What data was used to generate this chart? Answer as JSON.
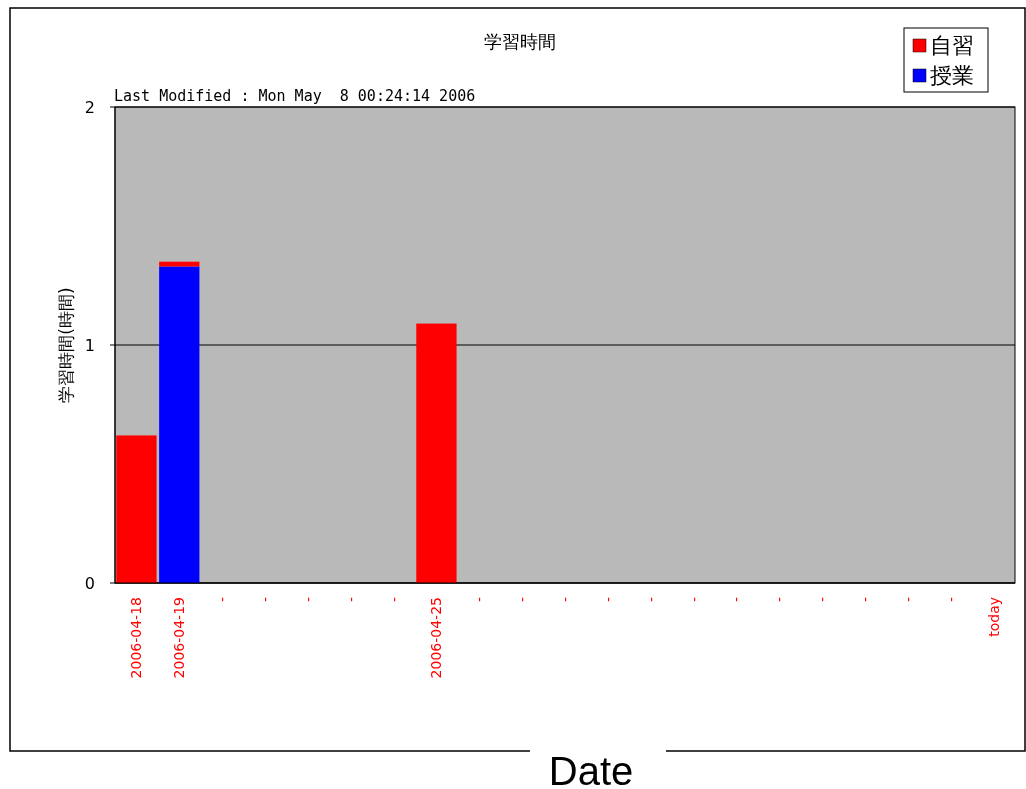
{
  "chart_data": {
    "type": "bar",
    "title": "学習時間",
    "xlabel": "Date",
    "ylabel": "学習時間(時間)",
    "annotations": [
      "Last Modified : Mon May  8 00:24:14 2006"
    ],
    "categories": [
      "2006-04-18",
      "2006-04-19",
      "-",
      "-",
      "-",
      "-",
      "-",
      "2006-04-25",
      "-",
      "-",
      "-",
      "-",
      "-",
      "-",
      "-",
      "-",
      "-",
      "-",
      "-",
      "-",
      "today"
    ],
    "stacked": true,
    "ylim": [
      0,
      2
    ],
    "yticks": [
      0,
      1,
      2
    ],
    "grid": "y",
    "legend": "top right",
    "series": [
      {
        "name": "授業",
        "color": "#0000ff",
        "values": [
          null,
          1.33,
          null,
          null,
          null,
          null,
          null,
          null,
          null,
          null,
          null,
          null,
          null,
          null,
          null,
          null,
          null,
          null,
          null,
          null,
          null
        ]
      },
      {
        "name": "自習",
        "color": "#ff0000",
        "values": [
          0.62,
          0.02,
          null,
          null,
          null,
          null,
          null,
          1.09,
          null,
          null,
          null,
          null,
          null,
          null,
          null,
          null,
          null,
          null,
          null,
          null,
          null
        ]
      }
    ]
  }
}
